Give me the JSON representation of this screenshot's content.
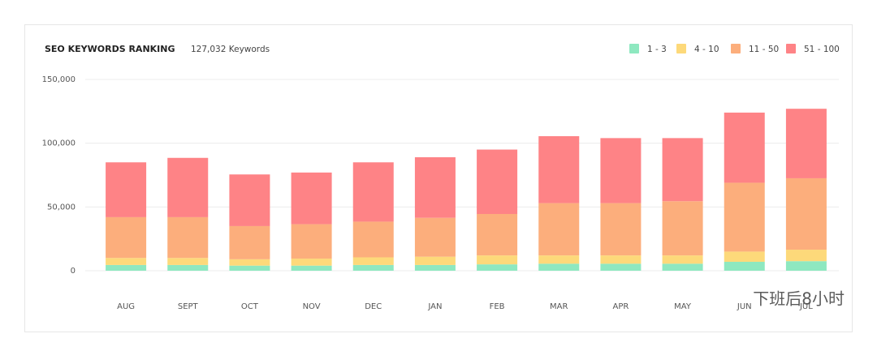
{
  "chart_data": {
    "type": "stacked-bar",
    "title": "SEO KEYWORDS RANKING",
    "subtitle": "127,032 Keywords",
    "categories": [
      "AUG",
      "SEPT",
      "OCT",
      "NOV",
      "DEC",
      "JAN",
      "FEB",
      "MAR",
      "APR",
      "MAY",
      "JUN",
      "JUL"
    ],
    "series": [
      {
        "name": "1 - 3",
        "color": "#8ee8c0",
        "values": [
          4500,
          4500,
          4000,
          4000,
          4500,
          4500,
          5000,
          5500,
          5500,
          5500,
          7000,
          7500
        ]
      },
      {
        "name": "4 - 10",
        "color": "#fdd97a",
        "values": [
          5500,
          5500,
          5000,
          5500,
          6000,
          6500,
          7000,
          6500,
          6500,
          6500,
          8000,
          9000
        ]
      },
      {
        "name": "11 - 50",
        "color": "#fcae7c",
        "values": [
          32000,
          32000,
          26000,
          27000,
          28000,
          30500,
          32500,
          41000,
          41000,
          42500,
          54000,
          56000
        ]
      },
      {
        "name": "51 - 100",
        "color": "#fe8386",
        "values": [
          43000,
          46500,
          40500,
          40500,
          46500,
          47500,
          50500,
          52500,
          51000,
          49500,
          55000,
          54500
        ]
      }
    ],
    "ylim": [
      0,
      150000
    ],
    "yticks": [
      0,
      {
        "value": 50000,
        "label": "50,000"
      },
      {
        "value": 100000,
        "label": "100,000"
      },
      {
        "value": 150000,
        "label": "150,000"
      }
    ],
    "grid": true,
    "legend": "top-right",
    "watermark": "下班后8小时"
  }
}
